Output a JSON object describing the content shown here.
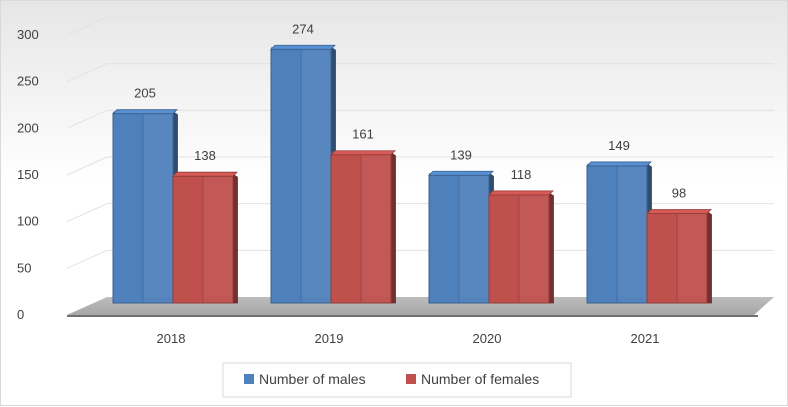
{
  "chart_data": {
    "type": "bar",
    "categories": [
      "2018",
      "2019",
      "2020",
      "2021"
    ],
    "series": [
      {
        "name": "Number of males",
        "values": [
          205,
          274,
          139,
          149
        ],
        "color": "#4f81bd"
      },
      {
        "name": "Number of females",
        "values": [
          138,
          161,
          118,
          98
        ],
        "color": "#c0504d"
      }
    ],
    "ylim": [
      0,
      300
    ],
    "yticks": [
      "0",
      "50",
      "100",
      "150",
      "200",
      "250",
      "300"
    ],
    "grid": true,
    "legend_position": "bottom",
    "style": "3d-clustered-column"
  }
}
